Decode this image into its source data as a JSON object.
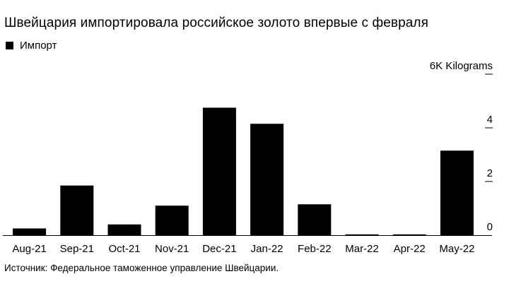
{
  "title": "Швейцария импортировала российское золото впервые с февраля",
  "legend": {
    "label": "Импорт",
    "color": "#000000"
  },
  "source": "Источник: Федеральное таможенное управление Швейцарии.",
  "chart_data": {
    "type": "bar",
    "title": "Швейцария импортировала российское золото впервые с февраля",
    "categories": [
      "Aug-21",
      "Sep-21",
      "Oct-21",
      "Nov-21",
      "Dec-21",
      "Jan-22",
      "Feb-22",
      "Mar-22",
      "Apr-22",
      "May-22"
    ],
    "series": [
      {
        "name": "Импорт",
        "color": "#000000",
        "values": [
          0.25,
          1.85,
          0.4,
          1.1,
          4.75,
          4.15,
          1.15,
          0.03,
          0.03,
          3.15
        ]
      }
    ],
    "ylim": [
      0,
      6
    ],
    "yticks": [
      0,
      2,
      4,
      6
    ],
    "ytick_labels": [
      "0",
      "2",
      "4",
      "6K Kilograms"
    ],
    "ylabel": "",
    "xlabel": "",
    "y_axis_position": "right",
    "grid": false,
    "legend_position": "top-left"
  }
}
